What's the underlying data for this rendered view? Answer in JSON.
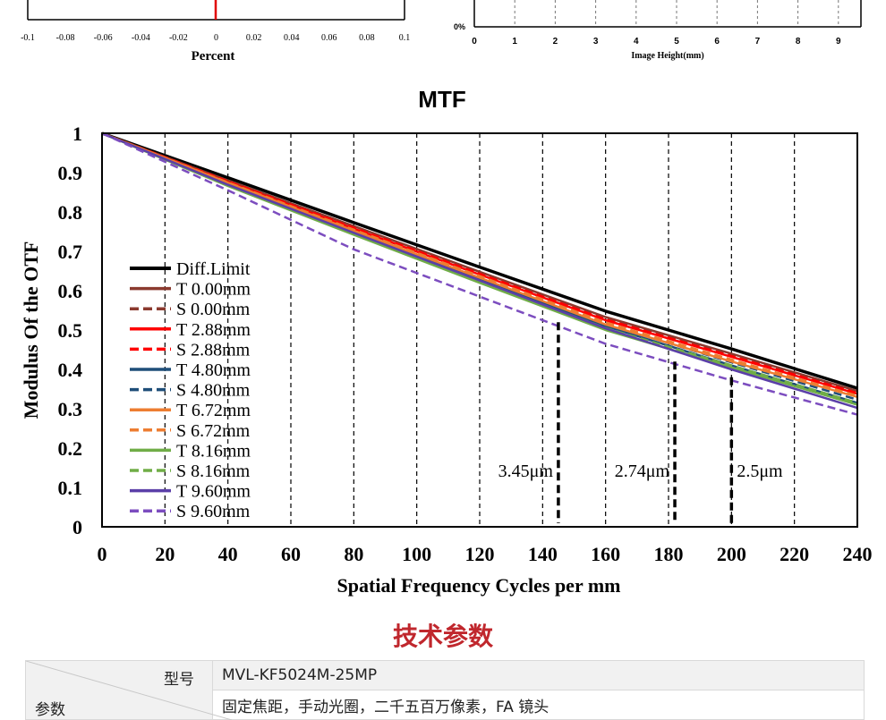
{
  "top_charts": {
    "left": {
      "x_ticks": [
        "-0.1",
        "-0.08",
        "-0.06",
        "-0.04",
        "-0.02",
        "0",
        "0.02",
        "0.04",
        "0.06",
        "0.08",
        "0.1"
      ],
      "xlabel": "Percent",
      "line_color": "#e00000"
    },
    "right": {
      "y_tick": "0%",
      "x_ticks": [
        "0",
        "1",
        "2",
        "3",
        "4",
        "5",
        "6",
        "7",
        "8",
        "9"
      ],
      "xlabel": "Image Height(mm)"
    }
  },
  "chart_data": {
    "type": "line",
    "title": "MTF",
    "xlabel": "Spatial Frequency Cycles per mm",
    "ylabel": "Modulus Of the OTF",
    "xlim": [
      0,
      240
    ],
    "ylim": [
      0,
      1
    ],
    "x_ticks": [
      "0",
      "20",
      "40",
      "60",
      "80",
      "100",
      "120",
      "140",
      "160",
      "180",
      "200",
      "220",
      "240"
    ],
    "y_ticks": [
      "0",
      "0.1",
      "0.2",
      "0.3",
      "0.4",
      "0.5",
      "0.6",
      "0.7",
      "0.8",
      "0.9",
      "1"
    ],
    "grid": "vertical dashed",
    "legend_position": "left-bottom inside",
    "series": [
      {
        "name": "Diff.Limit",
        "color": "#000000",
        "dash": false,
        "points": [
          [
            0,
            1
          ],
          [
            40,
            0.887
          ],
          [
            80,
            0.773
          ],
          [
            120,
            0.66
          ],
          [
            160,
            0.548
          ],
          [
            200,
            0.452
          ],
          [
            240,
            0.352
          ]
        ]
      },
      {
        "name": "T 0.00mm",
        "color": "#8b3a2f",
        "dash": false,
        "points": [
          [
            0,
            1
          ],
          [
            40,
            0.88
          ],
          [
            80,
            0.764
          ],
          [
            120,
            0.648
          ],
          [
            160,
            0.533
          ],
          [
            200,
            0.44
          ],
          [
            240,
            0.345
          ]
        ]
      },
      {
        "name": "S 0.00mm",
        "color": "#8b3a2f",
        "dash": true,
        "points": [
          [
            0,
            1
          ],
          [
            40,
            0.879
          ],
          [
            80,
            0.762
          ],
          [
            120,
            0.646
          ],
          [
            160,
            0.531
          ],
          [
            200,
            0.438
          ],
          [
            240,
            0.343
          ]
        ]
      },
      {
        "name": "T 2.88mm",
        "color": "#ff0000",
        "dash": false,
        "points": [
          [
            0,
            1
          ],
          [
            40,
            0.876
          ],
          [
            80,
            0.758
          ],
          [
            120,
            0.641
          ],
          [
            160,
            0.525
          ],
          [
            200,
            0.432
          ],
          [
            240,
            0.338
          ]
        ]
      },
      {
        "name": "S 2.88mm",
        "color": "#ff0000",
        "dash": true,
        "points": [
          [
            0,
            1
          ],
          [
            40,
            0.878
          ],
          [
            80,
            0.76
          ],
          [
            120,
            0.643
          ],
          [
            160,
            0.527
          ],
          [
            200,
            0.434
          ],
          [
            240,
            0.34
          ]
        ]
      },
      {
        "name": "T 4.80mm",
        "color": "#1f4e79",
        "dash": false,
        "points": [
          [
            0,
            1
          ],
          [
            40,
            0.872
          ],
          [
            80,
            0.75
          ],
          [
            120,
            0.63
          ],
          [
            160,
            0.51
          ],
          [
            200,
            0.41
          ],
          [
            240,
            0.315
          ]
        ]
      },
      {
        "name": "S 4.80mm",
        "color": "#1f4e79",
        "dash": true,
        "points": [
          [
            0,
            1
          ],
          [
            40,
            0.874
          ],
          [
            80,
            0.754
          ],
          [
            120,
            0.635
          ],
          [
            160,
            0.516
          ],
          [
            200,
            0.418
          ],
          [
            240,
            0.323
          ]
        ]
      },
      {
        "name": "T 6.72mm",
        "color": "#ed7d31",
        "dash": false,
        "points": [
          [
            0,
            1
          ],
          [
            40,
            0.874
          ],
          [
            80,
            0.752
          ],
          [
            120,
            0.633
          ],
          [
            160,
            0.514
          ],
          [
            200,
            0.42
          ],
          [
            240,
            0.33
          ]
        ]
      },
      {
        "name": "S 6.72mm",
        "color": "#ed7d31",
        "dash": true,
        "points": [
          [
            0,
            1
          ],
          [
            40,
            0.875
          ],
          [
            80,
            0.755
          ],
          [
            120,
            0.637
          ],
          [
            160,
            0.519
          ],
          [
            200,
            0.425
          ],
          [
            240,
            0.333
          ]
        ]
      },
      {
        "name": "T 8.16mm",
        "color": "#70ad47",
        "dash": false,
        "points": [
          [
            0,
            1
          ],
          [
            40,
            0.866
          ],
          [
            80,
            0.742
          ],
          [
            120,
            0.62
          ],
          [
            160,
            0.5
          ],
          [
            200,
            0.405
          ],
          [
            240,
            0.31
          ]
        ]
      },
      {
        "name": "S 8.16mm",
        "color": "#70ad47",
        "dash": true,
        "points": [
          [
            0,
            1
          ],
          [
            40,
            0.868
          ],
          [
            80,
            0.745
          ],
          [
            120,
            0.624
          ],
          [
            160,
            0.505
          ],
          [
            200,
            0.41
          ],
          [
            240,
            0.315
          ]
        ]
      },
      {
        "name": "T 9.60mm",
        "color": "#5b3fa8",
        "dash": false,
        "points": [
          [
            0,
            1
          ],
          [
            40,
            0.869
          ],
          [
            80,
            0.747
          ],
          [
            120,
            0.626
          ],
          [
            160,
            0.504
          ],
          [
            200,
            0.4
          ],
          [
            240,
            0.302
          ]
        ]
      },
      {
        "name": "S 9.60mm",
        "color": "#7c4dbf",
        "dash": true,
        "points": [
          [
            0,
            1
          ],
          [
            40,
            0.855
          ],
          [
            80,
            0.705
          ],
          [
            120,
            0.585
          ],
          [
            160,
            0.465
          ],
          [
            200,
            0.372
          ],
          [
            240,
            0.285
          ]
        ]
      }
    ],
    "annotations": [
      {
        "label": "3.45μm",
        "x": 145,
        "y_top": 0.52
      },
      {
        "label": "2.74μm",
        "x": 182,
        "y_top": 0.42
      },
      {
        "label": "2.5μm",
        "x": 200,
        "y_top": 0.38
      }
    ]
  },
  "specs": {
    "title": "技术参数",
    "header_top": "型号",
    "header_bottom": "参数",
    "rows": [
      {
        "value": "MVL-KF5024M-25MP"
      },
      {
        "value": "固定焦距，手动光圈，二千五百万像素，FA 镜头"
      }
    ]
  }
}
